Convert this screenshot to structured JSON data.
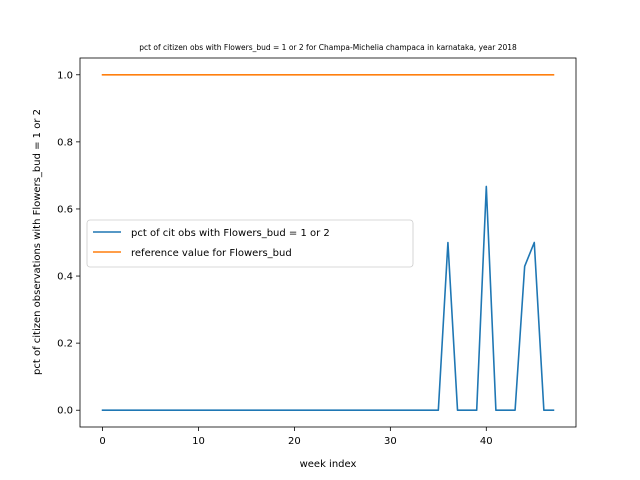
{
  "chart_data": {
    "type": "line",
    "title": "pct of citizen obs with Flowers_bud = 1 or 2 for Champa-Michelia champaca in karnataka, year 2018",
    "xlabel": "week index",
    "ylabel": "pct of citizen observations with Flowers_bud = 1 or 2",
    "xlim": [
      -2.35,
      49.35
    ],
    "ylim": [
      -0.05,
      1.05
    ],
    "xticks": [
      0,
      10,
      20,
      30,
      40
    ],
    "yticks": [
      0.0,
      0.2,
      0.4,
      0.6,
      0.8,
      1.0
    ],
    "xtick_labels": [
      "0",
      "10",
      "20",
      "30",
      "40"
    ],
    "ytick_labels": [
      "0.0",
      "0.2",
      "0.4",
      "0.6",
      "0.8",
      "1.0"
    ],
    "legend_position": "center-left",
    "grid": false,
    "series": [
      {
        "name": "pct of cit obs with Flowers_bud = 1 or 2",
        "color": "#1f77b4",
        "x": [
          0,
          1,
          2,
          3,
          4,
          5,
          6,
          7,
          8,
          9,
          10,
          11,
          12,
          13,
          14,
          15,
          16,
          17,
          18,
          19,
          20,
          21,
          22,
          23,
          24,
          25,
          26,
          27,
          28,
          29,
          30,
          31,
          32,
          33,
          34,
          35,
          36,
          37,
          38,
          39,
          40,
          41,
          42,
          43,
          44,
          45,
          46,
          47
        ],
        "y": [
          0,
          0,
          0,
          0,
          0,
          0,
          0,
          0,
          0,
          0,
          0,
          0,
          0,
          0,
          0,
          0,
          0,
          0,
          0,
          0,
          0,
          0,
          0,
          0,
          0,
          0,
          0,
          0,
          0,
          0,
          0,
          0,
          0,
          0,
          0,
          0,
          0.5,
          0,
          0,
          0,
          0.667,
          0,
          0,
          0,
          0.429,
          0.5,
          0,
          0
        ]
      },
      {
        "name": "reference value for Flowers_bud",
        "color": "#ff7f0e",
        "x": [
          0,
          1,
          2,
          3,
          4,
          5,
          6,
          7,
          8,
          9,
          10,
          11,
          12,
          13,
          14,
          15,
          16,
          17,
          18,
          19,
          20,
          21,
          22,
          23,
          24,
          25,
          26,
          27,
          28,
          29,
          30,
          31,
          32,
          33,
          34,
          35,
          36,
          37,
          38,
          39,
          40,
          41,
          42,
          43,
          44,
          45,
          46,
          47
        ],
        "y": [
          1,
          1,
          1,
          1,
          1,
          1,
          1,
          1,
          1,
          1,
          1,
          1,
          1,
          1,
          1,
          1,
          1,
          1,
          1,
          1,
          1,
          1,
          1,
          1,
          1,
          1,
          1,
          1,
          1,
          1,
          1,
          1,
          1,
          1,
          1,
          1,
          1,
          1,
          1,
          1,
          1,
          1,
          1,
          1,
          1,
          1,
          1,
          1
        ]
      }
    ]
  }
}
